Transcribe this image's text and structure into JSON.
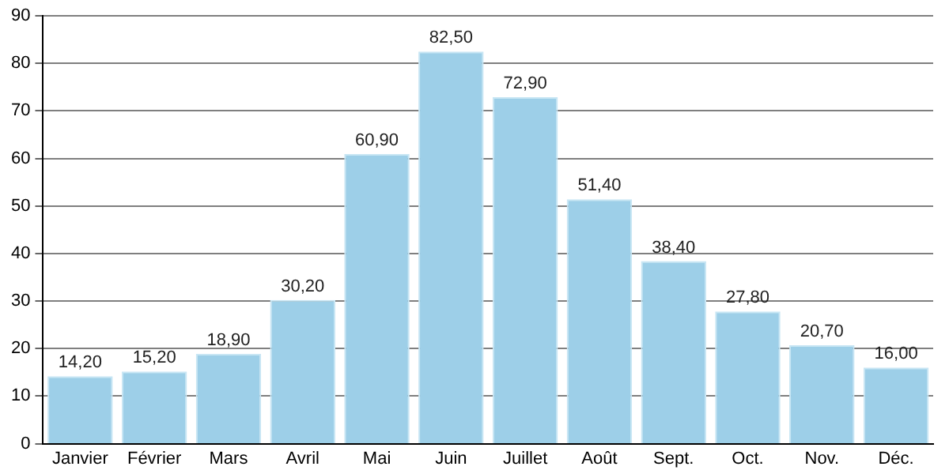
{
  "chart_data": {
    "type": "bar",
    "categories": [
      "Janvier",
      "Février",
      "Mars",
      "Avril",
      "Mai",
      "Juin",
      "Juillet",
      "Août",
      "Sept.",
      "Oct.",
      "Nov.",
      "Déc."
    ],
    "values": [
      14.2,
      15.2,
      18.9,
      30.2,
      60.9,
      82.5,
      72.9,
      51.4,
      38.4,
      27.8,
      20.7,
      16.0
    ],
    "value_labels": [
      "14,20",
      "15,20",
      "18,90",
      "30,20",
      "60,90",
      "82,50",
      "72,90",
      "51,40",
      "38,40",
      "27,80",
      "20,70",
      "16,00"
    ],
    "color": "#9dcfe8",
    "ylim": [
      0,
      90
    ],
    "yticks": [
      0,
      10,
      20,
      30,
      40,
      50,
      60,
      70,
      80,
      90
    ],
    "grid": "y"
  }
}
